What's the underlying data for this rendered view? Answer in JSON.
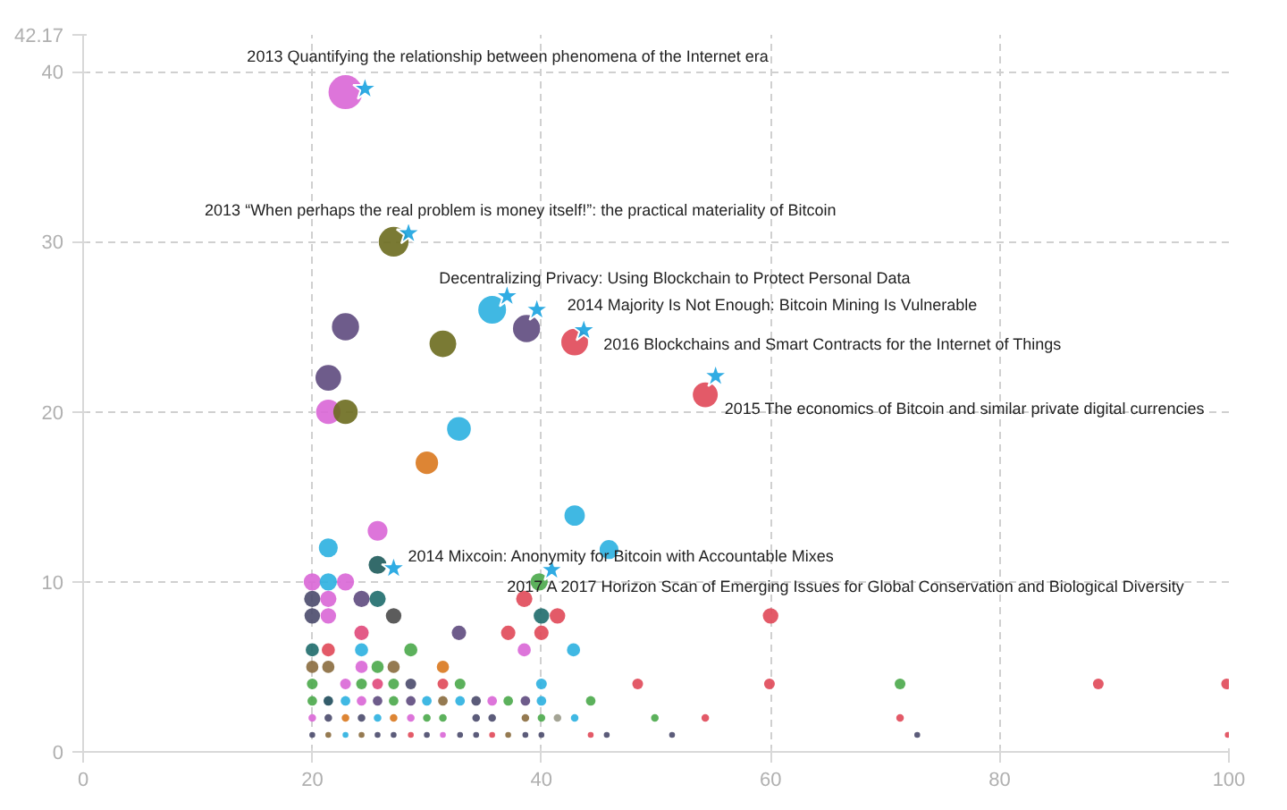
{
  "chart_data": {
    "type": "bubble",
    "xlim": [
      0,
      100
    ],
    "ylim": [
      0,
      42.17
    ],
    "xticks": [
      0,
      20,
      40,
      60,
      80,
      100
    ],
    "yticks": [
      0,
      10,
      20,
      30,
      40,
      42.17
    ],
    "grid": true,
    "series": [
      {
        "marker": "circle",
        "x": [
          22.9,
          27.1,
          35.7,
          38.7,
          42.9,
          22.9,
          31.4,
          21.4,
          21.4,
          22.9,
          32.8,
          30,
          54.3,
          42.9,
          45.9,
          21.4,
          25.7,
          25.7,
          20,
          22.9,
          21.4,
          39.8,
          20,
          21.4,
          24.3,
          25.7,
          38.5,
          20,
          21.4,
          27.1,
          40,
          41.4,
          32.8,
          24.3,
          37.1,
          40,
          28.6,
          20,
          21.4,
          24.3,
          38.5,
          42.8,
          60,
          20,
          21.4,
          24.3,
          25.7,
          27.1,
          31.4,
          20,
          22.9,
          24.3,
          25.7,
          27.1,
          28.6,
          31.4,
          32.9,
          40,
          48.4,
          59.9,
          71.3,
          88.6,
          99.8,
          20,
          21.4,
          22.9,
          24.3,
          25.7,
          27.1,
          28.6,
          30,
          31.4,
          32.9,
          34.3,
          35.7,
          37.1,
          38.6,
          40,
          44.3,
          20,
          21.4,
          22.9,
          24.3,
          25.7,
          27.1,
          28.6,
          30,
          31.4,
          34.3,
          35.7,
          38.6,
          40,
          41.4,
          42.9,
          49.9,
          54.3,
          71.3,
          20,
          21.4,
          22.9,
          24.3,
          25.7,
          27.1,
          28.6,
          30,
          31.4,
          32.9,
          34.3,
          35.7,
          37.1,
          38.6,
          40,
          44.3,
          45.7,
          51.4,
          72.8,
          99.9
        ],
        "values": [
          38.8,
          30,
          26,
          24.9,
          24.1,
          25,
          24,
          22,
          20,
          20,
          19,
          17,
          21,
          13.9,
          11.9,
          12,
          13,
          11,
          10,
          10,
          10,
          10,
          9,
          9,
          9,
          9,
          9,
          8,
          8,
          8,
          8,
          8,
          7,
          7,
          7,
          7,
          6,
          6,
          6,
          6,
          6,
          6,
          8,
          5,
          5,
          5,
          5,
          5,
          5,
          4,
          4,
          4,
          4,
          4,
          4,
          4,
          4,
          4,
          4,
          4,
          4,
          4,
          4,
          3,
          3,
          3,
          3,
          3,
          3,
          3,
          3,
          3,
          3,
          3,
          3,
          3,
          3,
          3,
          3,
          2,
          2,
          2,
          2,
          2,
          2,
          2,
          2,
          2,
          2,
          2,
          2,
          2,
          2,
          2,
          2,
          2,
          2,
          1,
          1,
          1,
          1,
          1,
          1,
          1,
          1,
          1,
          1,
          1,
          1,
          1,
          1,
          1,
          1,
          1,
          1,
          1,
          1
        ],
        "colors": [
          "#d966d6",
          "#6b6b1e",
          "#2bb0e0",
          "#5e4a7e",
          "#e04858",
          "#5e4a7e",
          "#6b6b1e",
          "#5e4a7e",
          "#d966d6",
          "#6b6b1e",
          "#2bb0e0",
          "#d9781e",
          "#e04858",
          "#2bb0e0",
          "#2bb0e0",
          "#2bb0e0",
          "#d966d6",
          "#1e5b5b",
          "#d966d6",
          "#d966d6",
          "#2bb0e0",
          "#4aa84a",
          "#4a4a6b",
          "#d966d6",
          "#5e4a7e",
          "#1e6b6b",
          "#e04858",
          "#4a4a6b",
          "#d966d6",
          "#4a4a4a",
          "#1e6b6b",
          "#e04858",
          "#5e4a7e",
          "#e0487a",
          "#e04858",
          "#e04858",
          "#4aa84a",
          "#1e6b6b",
          "#e04858",
          "#2bb0e0",
          "#d966d6",
          "#2bb0e0",
          "#e04858",
          "#8a6b3e",
          "#8a6b3e",
          "#d966d6",
          "#4aa84a",
          "#8a6b3e",
          "#d9781e",
          "#4aa84a",
          "#d966d6",
          "#4aa84a",
          "#e0487a",
          "#4aa84a",
          "#4a4a6b",
          "#e04858",
          "#4aa84a",
          "#2bb0e0",
          "#e04858",
          "#e04858",
          "#4aa84a",
          "#e04858",
          "#e04858",
          "#4aa84a",
          "#1e4b5b",
          "#2bb0e0",
          "#d966d6",
          "#5e4a7e",
          "#4aa84a",
          "#5e4a7e",
          "#2bb0e0",
          "#8a6b3e",
          "#2bb0e0",
          "#4a4a6b",
          "#d966d6",
          "#4aa84a",
          "#5e4a7e",
          "#2bb0e0",
          "#4aa84a",
          "#d966d6",
          "#4a4a6b",
          "#d9781e",
          "#4a4a6b",
          "#2bb0e0",
          "#d9781e",
          "#d966d6",
          "#4aa84a",
          "#4aa84a",
          "#4a4a6b",
          "#4a4a6b",
          "#8a6b3e",
          "#4aa84a",
          "#9a9a8a",
          "#2bb0e0",
          "#4aa84a",
          "#e04858",
          "#e04858",
          "#4a4a6b",
          "#8a6b3e",
          "#2bb0e0",
          "#8a6b3e",
          "#4a4a6b",
          "#4a4a6b",
          "#e04858",
          "#4a4a6b",
          "#d966d6",
          "#4a4a6b",
          "#4a4a6b",
          "#e04858",
          "#8a6b3e",
          "#4a4a6b",
          "#4a4a6b",
          "#e04858",
          "#4a4a6b",
          "#4a4a6b",
          "#4a4a6b",
          "#e04858"
        ],
        "sizes": [
          1,
          0.77,
          0.67,
          0.64,
          0.62,
          0.64,
          0.62,
          0.57,
          0.52,
          0.52,
          0.49,
          0.44,
          0.54,
          0.36,
          0.31,
          0.31,
          0.34,
          0.28,
          0.26,
          0.26,
          0.26,
          0.26,
          0.23,
          0.23,
          0.23,
          0.23,
          0.23,
          0.21,
          0.21,
          0.21,
          0.21,
          0.21,
          0.18,
          0.18,
          0.18,
          0.18,
          0.15,
          0.15,
          0.15,
          0.15,
          0.15,
          0.15,
          0.21,
          0.13,
          0.13,
          0.13,
          0.13,
          0.13,
          0.13,
          0.1,
          0.1,
          0.1,
          0.1,
          0.1,
          0.1,
          0.1,
          0.1,
          0.1,
          0.1,
          0.1,
          0.1,
          0.1,
          0.1,
          0.08,
          0.08,
          0.08,
          0.08,
          0.08,
          0.08,
          0.08,
          0.08,
          0.08,
          0.08,
          0.08,
          0.08,
          0.08,
          0.08,
          0.08,
          0.08,
          0.05,
          0.05,
          0.05,
          0.05,
          0.05,
          0.05,
          0.05,
          0.05,
          0.05,
          0.05,
          0.05,
          0.05,
          0.05,
          0.05,
          0.05,
          0.05,
          0.05,
          0.05,
          0.03,
          0.03,
          0.03,
          0.03,
          0.03,
          0.03,
          0.03,
          0.03,
          0.03,
          0.03,
          0.03,
          0.03,
          0.03,
          0.03,
          0.03,
          0.03,
          0.03,
          0.03,
          0.03,
          0.03
        ]
      },
      {
        "type": "scatter",
        "marker": "star",
        "color": "#1aa3e0",
        "x": [
          24.6,
          28.4,
          37.0,
          39.6,
          43.7,
          55.2,
          27.1,
          40.9
        ],
        "values": [
          39.0,
          30.5,
          26.8,
          26.0,
          24.8,
          22.1,
          10.8,
          10.7
        ]
      }
    ],
    "annotations": [
      {
        "text": "2013 Quantifying the relationship between phenomena of the Internet era",
        "x": 24.6,
        "y": 39.0
      },
      {
        "text": "2013 “When perhaps the real problem is money itself!”: the practical materiality of Bitcoin",
        "x": 28.4,
        "y": 30.5
      },
      {
        "text": "Decentralizing Privacy: Using Blockchain to Protect Personal Data",
        "x": 37.0,
        "y": 26.8
      },
      {
        "text": "2014 Majority Is Not Enough: Bitcoin Mining Is Vulnerable",
        "x": 39.6,
        "y": 26.0
      },
      {
        "text": "2016 Blockchains and Smart Contracts for the Internet of Things",
        "x": 43.7,
        "y": 24.8
      },
      {
        "text": "2015 The economics of Bitcoin and similar private digital currencies",
        "x": 55.2,
        "y": 22.1
      },
      {
        "text": "2014 Mixcoin: Anonymity for Bitcoin with Accountable Mixes",
        "x": 27.1,
        "y": 10.8
      },
      {
        "text": "2017 A 2017 Horizon Scan of Emerging Issues for Global Conservation and Biological Diversity",
        "x": 40.9,
        "y": 10.7
      }
    ]
  }
}
